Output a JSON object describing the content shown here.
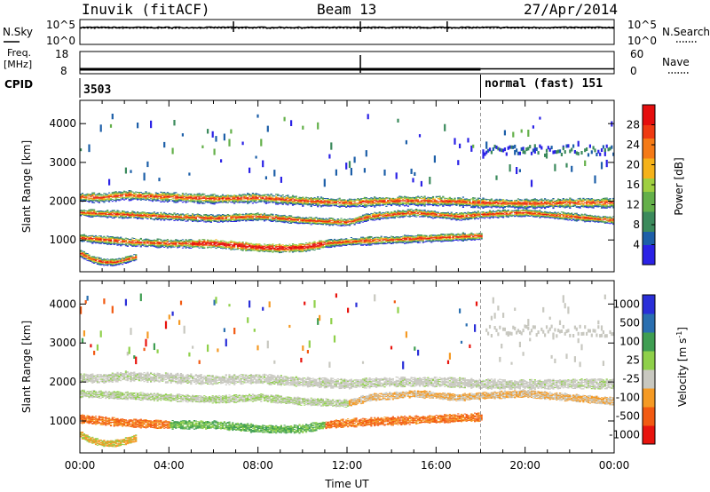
{
  "header": {
    "radar": "Inuvik (fitACF)",
    "beam": "Beam 13",
    "date": "27/Apr/2014",
    "cpid_label": "CPID",
    "cpid_left": "3503",
    "cpid_right": "normal (fast) 151"
  },
  "colors": {
    "power": [
      "#2b22e6",
      "#1d5fa8",
      "#3b8a5c",
      "#64b04a",
      "#9fcf40",
      "#f5b21a",
      "#f57a16",
      "#ef3a12",
      "#e50e0e"
    ],
    "velocity": [
      "#e8140e",
      "#f25a12",
      "#f59a24",
      "#c8c8c0",
      "#8fd04a",
      "#3f9e52",
      "#2a6fb0",
      "#2a2fd8"
    ],
    "strip_line": "#000000"
  },
  "chart_data": [
    {
      "type": "line",
      "name": "noise-strip",
      "left_label": "N.Sky",
      "right_label": "N.Search",
      "left_ticks": [
        "10^5",
        "10^0"
      ],
      "right_ticks": [
        "10^5",
        "10^0"
      ],
      "scale": "log",
      "ylim": [
        1,
        100000
      ]
    },
    {
      "type": "line",
      "name": "frequency-strip",
      "left_label": "Freq.",
      "left_unit": "[MHz]",
      "left_ticks": [
        "18",
        "8"
      ],
      "right_label": "Nave",
      "right_ticks": [
        "60",
        "0"
      ],
      "ylim_freq": [
        8,
        18
      ],
      "ylim_nave": [
        0,
        60
      ],
      "mode_change_hour": 18
    },
    {
      "type": "heatmap",
      "name": "power-panel",
      "ylabel": "Slant Range [km]",
      "yticks": [
        1000,
        2000,
        3000,
        4000
      ],
      "ylim": [
        180,
        4600
      ],
      "xlim": [
        0,
        24
      ],
      "colorbar_label": "Power [dB]",
      "colorbar_ticks": [
        4,
        8,
        12,
        16,
        20,
        24,
        28
      ],
      "colorbar_range": [
        0,
        32
      ],
      "bands": [
        {
          "times": [
            0,
            1,
            2,
            3,
            4,
            6,
            8,
            10,
            12,
            14,
            16,
            17,
            18,
            20,
            22,
            24
          ],
          "ranges": [
            2100,
            2080,
            2150,
            2120,
            2100,
            2050,
            2080,
            2000,
            1950,
            2000,
            2000,
            1980,
            1950,
            1930,
            1950,
            1950
          ],
          "width": 230
        },
        {
          "times": [
            0,
            2,
            4,
            6,
            8,
            10,
            12,
            13,
            14,
            15,
            16,
            17,
            18,
            20,
            22,
            24
          ],
          "ranges": [
            1700,
            1650,
            1600,
            1550,
            1600,
            1500,
            1450,
            1600,
            1650,
            1700,
            1650,
            1600,
            1650,
            1700,
            1600,
            1500
          ],
          "width": 180
        },
        {
          "times": [
            0,
            2,
            4,
            6,
            7,
            8,
            9,
            10,
            11,
            12,
            14,
            16,
            18
          ],
          "ranges": [
            1050,
            950,
            900,
            900,
            850,
            800,
            780,
            800,
            900,
            950,
            1000,
            1050,
            1100
          ],
          "width": 200
        },
        {
          "times": [
            0,
            0.5,
            1,
            1.5,
            2,
            2.5
          ],
          "ranges": [
            650,
            500,
            430,
            420,
            480,
            560
          ],
          "width": 170
        }
      ]
    },
    {
      "type": "heatmap",
      "name": "velocity-panel",
      "ylabel": "Slant Range [km]",
      "yticks": [
        1000,
        2000,
        3000,
        4000
      ],
      "ylim": [
        180,
        4600
      ],
      "xlim": [
        0,
        24
      ],
      "xticks": [
        "00:00",
        "04:00",
        "08:00",
        "12:00",
        "16:00",
        "20:00",
        "00:00"
      ],
      "xlabel": "Time UT",
      "colorbar_label": "Velocity [m s",
      "colorbar_label_exp": "-1",
      "colorbar_label_close": "]",
      "colorbar_ticks": [
        1000,
        500,
        100,
        25,
        -25,
        -100,
        -500,
        -1000
      ]
    }
  ]
}
